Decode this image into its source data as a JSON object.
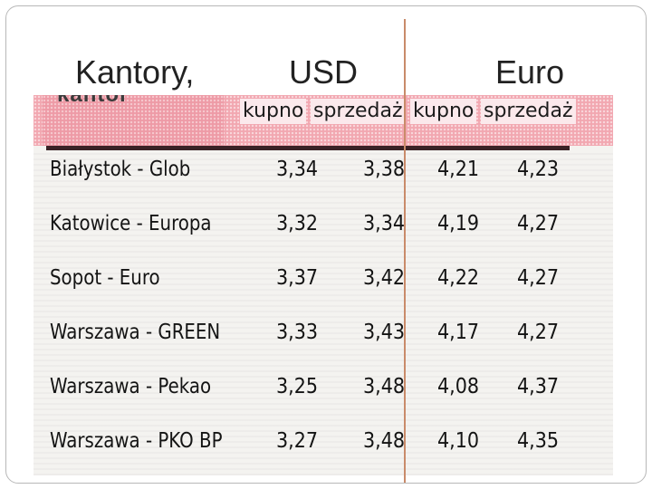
{
  "slide": {
    "title_left": "Kantory,",
    "title_mid": "USD",
    "title_right": "Euro"
  },
  "clipping": {
    "header_partial": "kantor",
    "subheaders": [
      "kupno",
      "sprzedaż",
      "kupno",
      "sprzedaż"
    ],
    "rows": [
      {
        "city": "Białystok - Glob",
        "usd_buy": "3,34",
        "usd_sell": "3,38",
        "eur_buy": "4,21",
        "eur_sell": "4,23"
      },
      {
        "city": "Katowice - Europa",
        "usd_buy": "3,32",
        "usd_sell": "3,34",
        "eur_buy": "4,19",
        "eur_sell": "4,27"
      },
      {
        "city": "Sopot - Euro",
        "usd_buy": "3,37",
        "usd_sell": "3,42",
        "eur_buy": "4,22",
        "eur_sell": "4,27"
      },
      {
        "city": "Warszawa - GREEN",
        "usd_buy": "3,33",
        "usd_sell": "3,43",
        "eur_buy": "4,17",
        "eur_sell": "4,27"
      },
      {
        "city": "Warszawa - Pekao",
        "usd_buy": "3,25",
        "usd_sell": "3,48",
        "eur_buy": "4,08",
        "eur_sell": "4,37"
      },
      {
        "city": "Warszawa - PKO BP",
        "usd_buy": "3,27",
        "usd_sell": "3,48",
        "eur_buy": "4,10",
        "eur_sell": "4,35"
      }
    ]
  }
}
